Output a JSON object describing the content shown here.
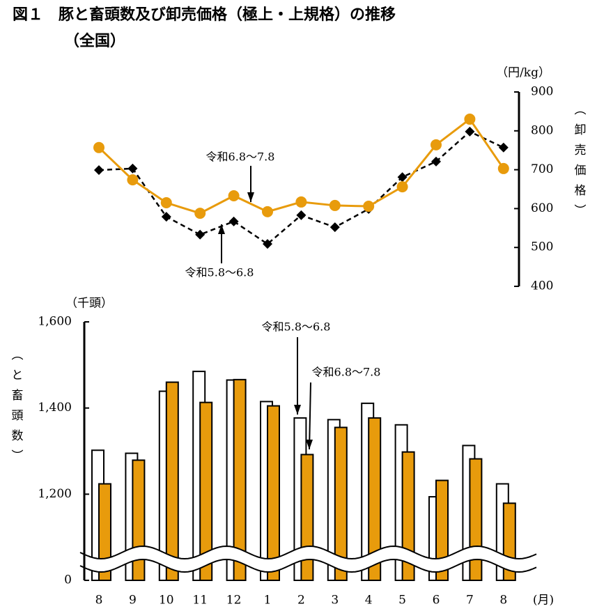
{
  "title": "図１　豚と畜頭数及び卸売価格（極上・上規格）の推移",
  "subtitle": "（全国）",
  "chart_data": [
    {
      "type": "line",
      "y_unit": "（円/kg）",
      "ylabel": "（卸売価格）",
      "ylim": [
        400,
        900
      ],
      "yticks": [
        400,
        500,
        600,
        700,
        800,
        900
      ],
      "axis_side": "right",
      "series": [
        {
          "name": "令和5.8～6.8",
          "color": "#000000",
          "marker": "diamond",
          "dash": true,
          "values": [
            699,
            703,
            579,
            533,
            567,
            509,
            583,
            552,
            599,
            681,
            721,
            798,
            757
          ]
        },
        {
          "name": "令和6.8～7.8",
          "color": "#e89b0c",
          "marker": "circle",
          "dash": false,
          "values": [
            757,
            674,
            615,
            588,
            633,
            592,
            617,
            608,
            606,
            656,
            764,
            830,
            703
          ]
        }
      ]
    },
    {
      "type": "bar",
      "y_unit": "（千頭）",
      "ylabel": "（と畜頭数）",
      "x_unit": "(月)",
      "ylim": [
        0,
        1600
      ],
      "axis_break": [
        0,
        1000
      ],
      "yticks": [
        0,
        {
          "value": 1200,
          "label": "1,200"
        },
        {
          "value": 1400,
          "label": "1,400"
        },
        {
          "value": 1600,
          "label": "1,600"
        }
      ],
      "categories": [
        "8",
        "9",
        "10",
        "11",
        "12",
        "1",
        "2",
        "3",
        "4",
        "5",
        "6",
        "7",
        "8"
      ],
      "series": [
        {
          "name": "令和5.8～6.8",
          "color": "#ffffff",
          "values": [
            1302,
            1295,
            1439,
            1485,
            1465,
            1415,
            1377,
            1373,
            1411,
            1361,
            1194,
            1313,
            1224
          ]
        },
        {
          "name": "令和6.8～7.8",
          "color": "#e89b0c",
          "values": [
            1224,
            1279,
            1460,
            1413,
            1466,
            1405,
            1292,
            1355,
            1377,
            1298,
            1232,
            1282,
            1179
          ]
        }
      ]
    }
  ]
}
